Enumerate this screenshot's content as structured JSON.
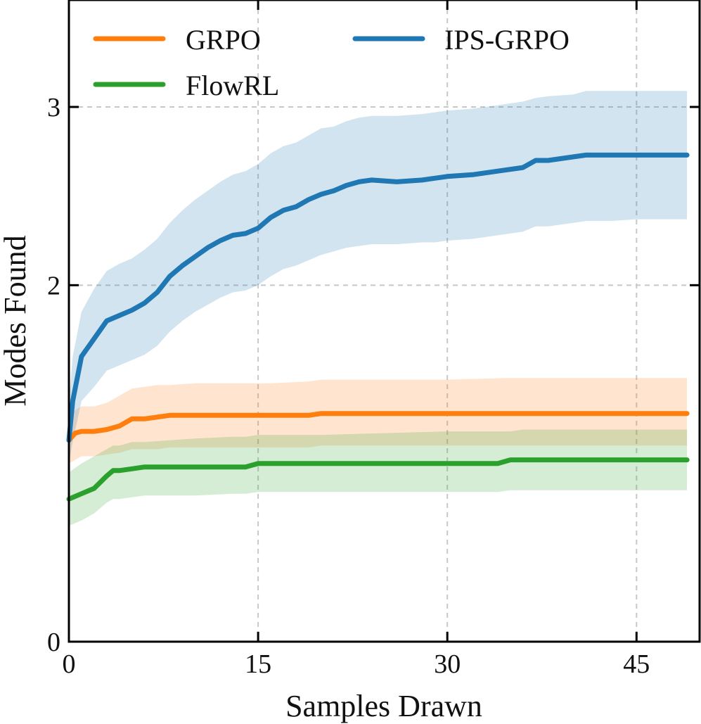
{
  "chart_data": {
    "type": "line",
    "title": "",
    "xlabel": "Samples Drawn",
    "ylabel": "Modes Found",
    "xlim": [
      0,
      50
    ],
    "ylim": [
      0,
      3.6
    ],
    "xticks": [
      0,
      15,
      30,
      45
    ],
    "yticks": [
      0,
      2,
      3
    ],
    "grid": true,
    "legend_position": "top",
    "series": [
      {
        "name": "GRPO",
        "color": "#ff7f0e",
        "x": [
          0,
          0.5,
          1,
          2,
          3,
          4,
          5,
          6,
          7,
          8,
          10,
          14,
          16,
          19,
          20,
          21,
          25,
          30,
          35,
          40,
          45,
          49
        ],
        "mean": [
          1.13,
          1.17,
          1.18,
          1.18,
          1.19,
          1.21,
          1.25,
          1.25,
          1.26,
          1.27,
          1.27,
          1.27,
          1.27,
          1.27,
          1.28,
          1.28,
          1.28,
          1.28,
          1.28,
          1.28,
          1.28,
          1.28
        ],
        "upper": [
          1.25,
          1.3,
          1.32,
          1.32,
          1.34,
          1.38,
          1.42,
          1.43,
          1.44,
          1.44,
          1.45,
          1.45,
          1.45,
          1.46,
          1.47,
          1.47,
          1.47,
          1.47,
          1.48,
          1.48,
          1.48,
          1.48
        ],
        "lower": [
          1.0,
          1.02,
          1.04,
          1.04,
          1.05,
          1.06,
          1.08,
          1.08,
          1.08,
          1.09,
          1.09,
          1.09,
          1.09,
          1.09,
          1.1,
          1.1,
          1.1,
          1.1,
          1.1,
          1.1,
          1.1,
          1.1
        ]
      },
      {
        "name": "IPS-GRPO",
        "color": "#1f77b4",
        "x": [
          0,
          0.3,
          1,
          2,
          3,
          4,
          5,
          6,
          7,
          8,
          9,
          10,
          11,
          12,
          13,
          14,
          15,
          16,
          17,
          18,
          19,
          20,
          21,
          22,
          23,
          24,
          26,
          28,
          29,
          30,
          32,
          34,
          36,
          37,
          38,
          40,
          41,
          43,
          45,
          49
        ],
        "mean": [
          1.13,
          1.35,
          1.6,
          1.7,
          1.8,
          1.83,
          1.86,
          1.9,
          1.96,
          2.05,
          2.11,
          2.16,
          2.21,
          2.25,
          2.28,
          2.29,
          2.32,
          2.38,
          2.42,
          2.44,
          2.48,
          2.51,
          2.53,
          2.56,
          2.58,
          2.59,
          2.58,
          2.59,
          2.6,
          2.61,
          2.62,
          2.64,
          2.66,
          2.7,
          2.7,
          2.72,
          2.73,
          2.73,
          2.73,
          2.73
        ],
        "upper": [
          1.35,
          1.6,
          1.85,
          1.98,
          2.08,
          2.12,
          2.15,
          2.2,
          2.26,
          2.35,
          2.42,
          2.48,
          2.53,
          2.58,
          2.62,
          2.64,
          2.68,
          2.74,
          2.78,
          2.8,
          2.84,
          2.88,
          2.89,
          2.92,
          2.94,
          2.95,
          2.95,
          2.96,
          2.97,
          2.98,
          2.99,
          3.01,
          3.03,
          3.05,
          3.06,
          3.07,
          3.09,
          3.09,
          3.09,
          3.09
        ],
        "lower": [
          1.0,
          1.12,
          1.35,
          1.43,
          1.52,
          1.55,
          1.58,
          1.61,
          1.66,
          1.74,
          1.8,
          1.85,
          1.89,
          1.93,
          1.96,
          1.97,
          2.0,
          2.05,
          2.09,
          2.11,
          2.14,
          2.17,
          2.19,
          2.21,
          2.22,
          2.23,
          2.23,
          2.24,
          2.24,
          2.25,
          2.26,
          2.28,
          2.3,
          2.33,
          2.33,
          2.35,
          2.36,
          2.36,
          2.37,
          2.37
        ]
      },
      {
        "name": "FlowRL",
        "color": "#2ca02c",
        "x": [
          0,
          1,
          2,
          3,
          3.5,
          4,
          5,
          6,
          8,
          10,
          13,
          14,
          15,
          20,
          25,
          30,
          34,
          35,
          36,
          40,
          45,
          49
        ],
        "mean": [
          0.8,
          0.83,
          0.86,
          0.93,
          0.96,
          0.96,
          0.97,
          0.98,
          0.98,
          0.98,
          0.98,
          0.98,
          1.0,
          1.0,
          1.0,
          1.0,
          1.0,
          1.02,
          1.02,
          1.02,
          1.02,
          1.02
        ],
        "upper": [
          0.95,
          1.0,
          1.04,
          1.08,
          1.1,
          1.1,
          1.12,
          1.12,
          1.13,
          1.14,
          1.15,
          1.15,
          1.16,
          1.16,
          1.17,
          1.18,
          1.18,
          1.18,
          1.19,
          1.19,
          1.19,
          1.19
        ],
        "lower": [
          0.65,
          0.68,
          0.72,
          0.78,
          0.8,
          0.8,
          0.81,
          0.82,
          0.82,
          0.82,
          0.83,
          0.83,
          0.84,
          0.84,
          0.84,
          0.84,
          0.84,
          0.85,
          0.85,
          0.85,
          0.85,
          0.85
        ]
      }
    ],
    "legend": [
      {
        "label": "GRPO",
        "color": "#ff7f0e"
      },
      {
        "label": "IPS-GRPO",
        "color": "#1f77b4"
      },
      {
        "label": "FlowRL",
        "color": "#2ca02c"
      }
    ]
  }
}
